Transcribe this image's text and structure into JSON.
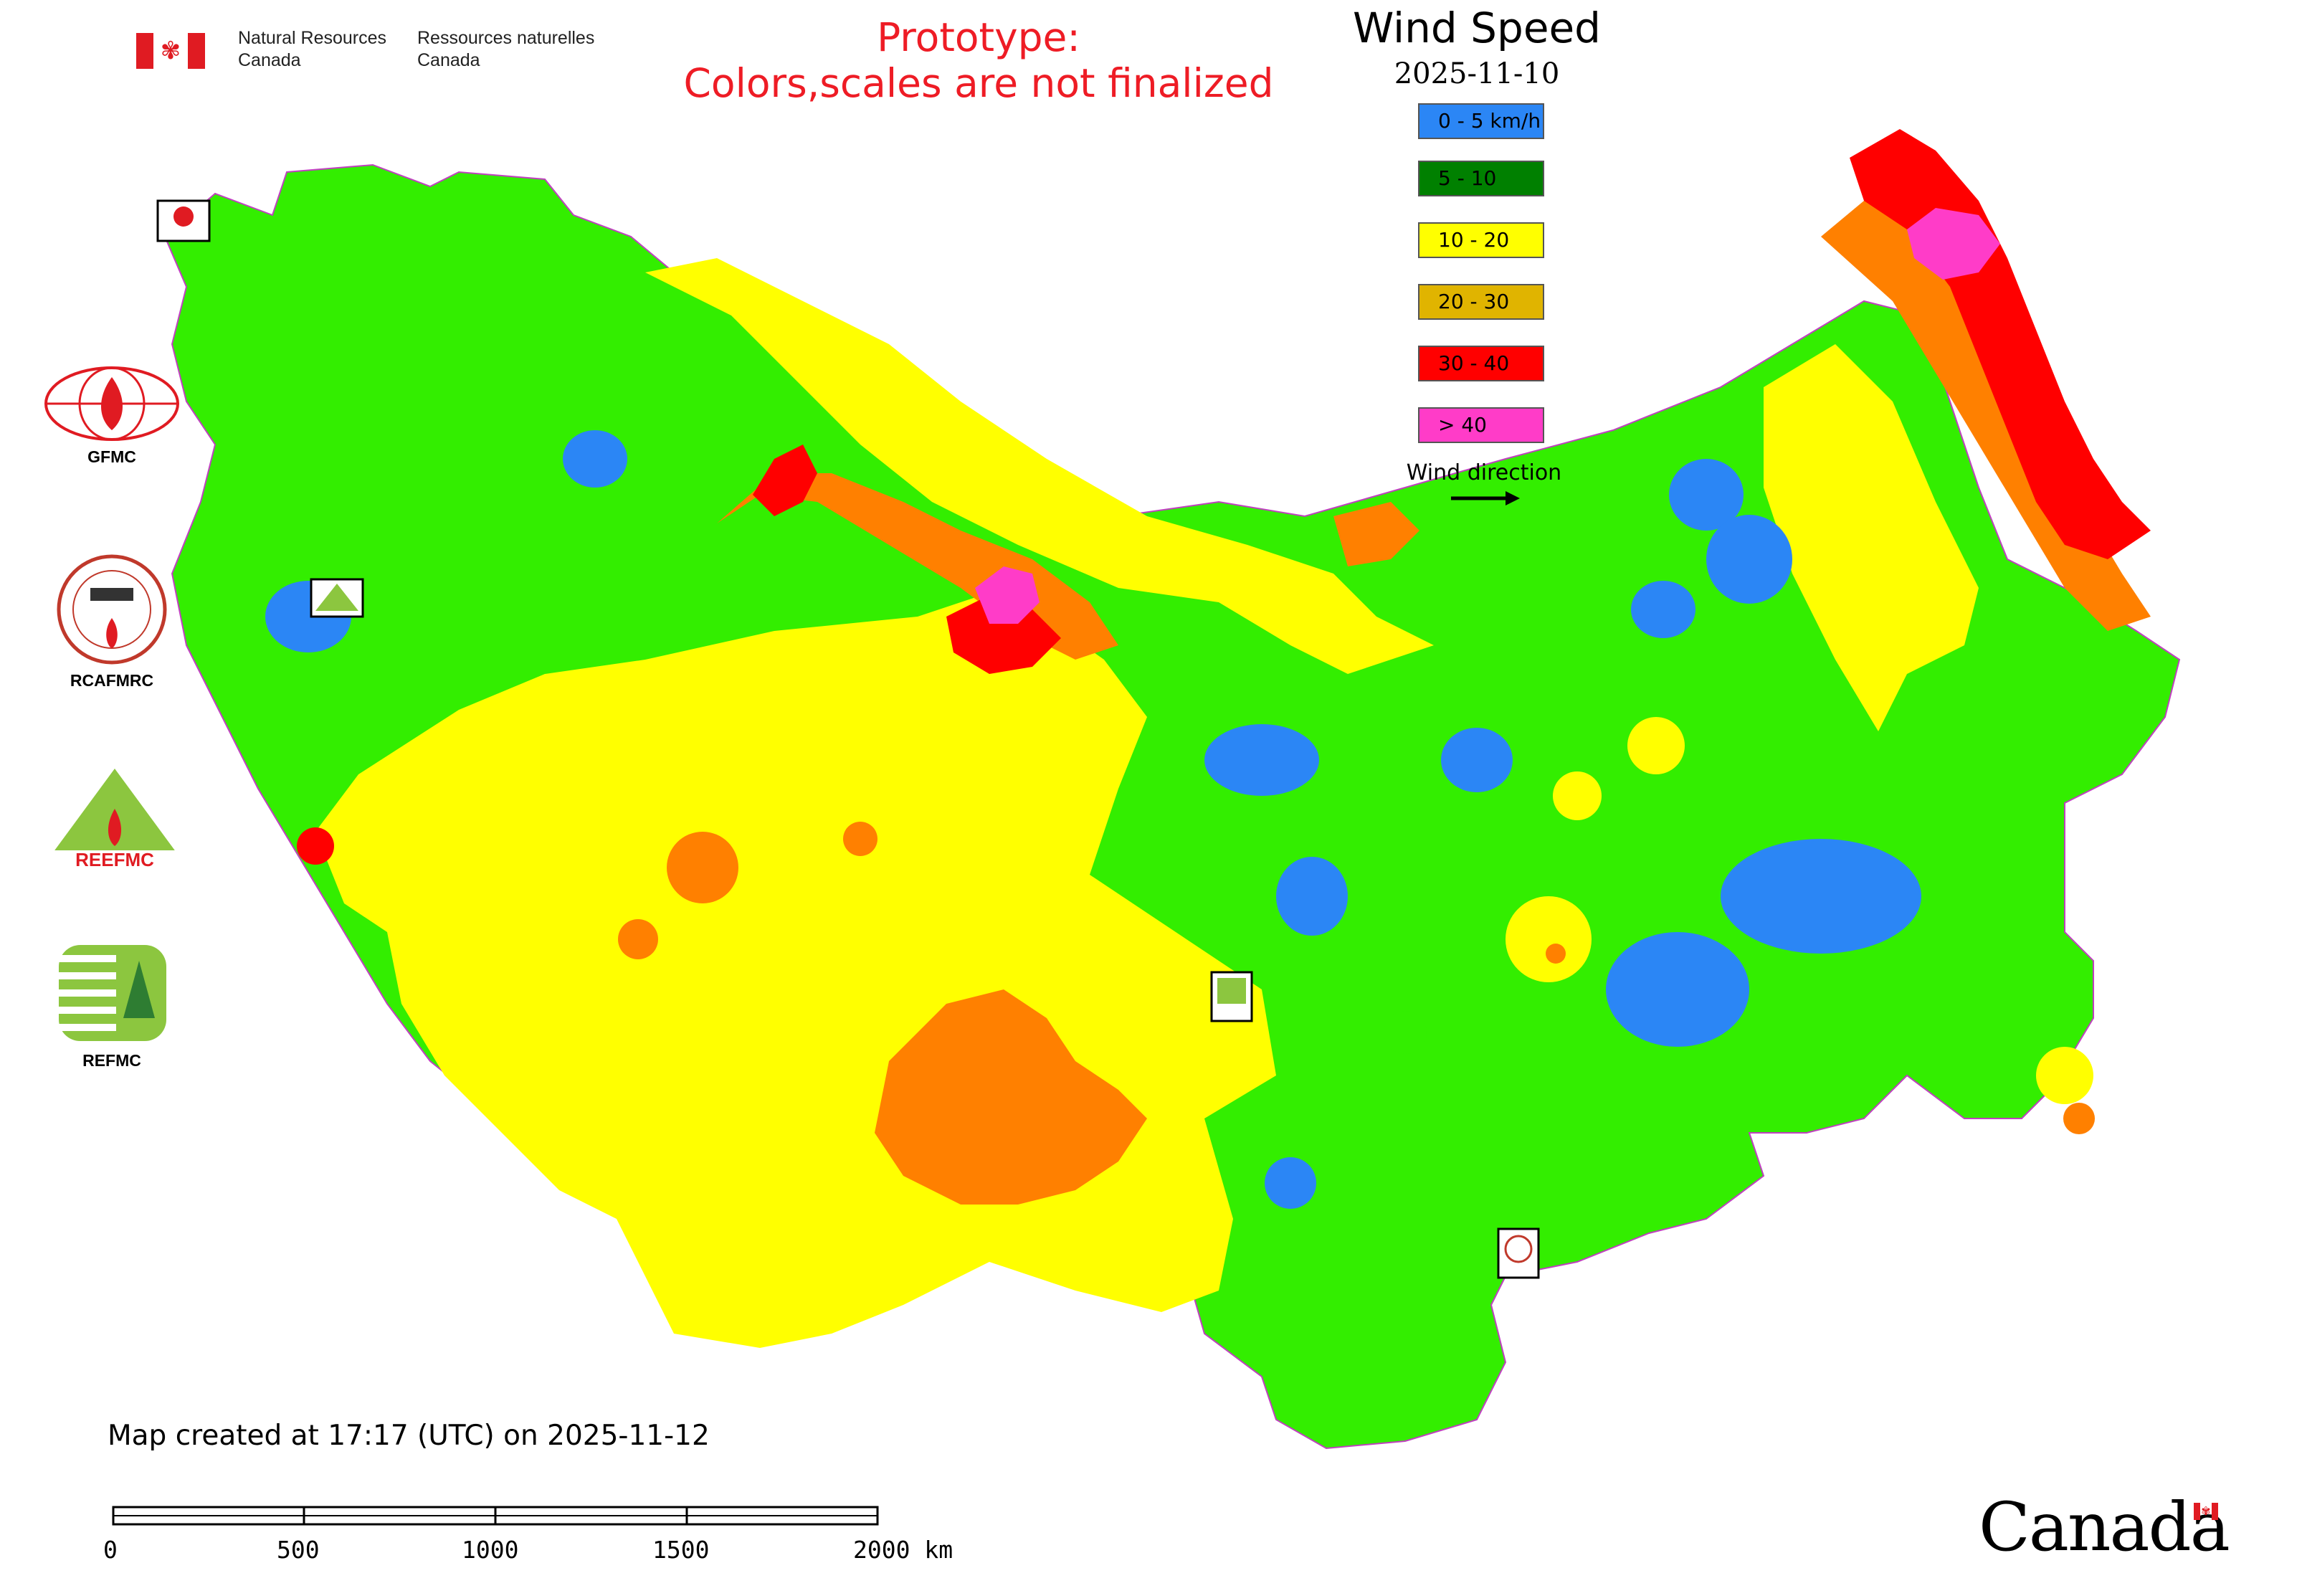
{
  "header": {
    "signature_en": "Natural Resources\nCanada",
    "signature_fr": "Ressources naturelles\nCanada",
    "prototype_line1": "Prototype:",
    "prototype_line2": "Colors,scales are not finalized"
  },
  "legend": {
    "title": "Wind Speed",
    "date": "2025-11-10",
    "classes": [
      {
        "label": "0 - 5 km/h",
        "color": "#2b86f5"
      },
      {
        "label": "5 - 10",
        "color": "#008000"
      },
      {
        "label": "10 - 20",
        "color": "#ffff00"
      },
      {
        "label": "20 - 30",
        "color": "#e0b400"
      },
      {
        "label": "30 - 40",
        "color": "#ff0000"
      },
      {
        "label": "> 40",
        "color": "#ff3cc8"
      }
    ],
    "wind_direction_label": "Wind direction"
  },
  "map_colors": {
    "blue": "#2b86f5",
    "green": "#33ee00",
    "yellow": "#ffff00",
    "orange": "#ff8000",
    "red": "#ff0000",
    "magenta": "#ff3cc8",
    "border": "#c040c0"
  },
  "logos": [
    {
      "label": "GFMC",
      "icon": "gfmc-logo-icon"
    },
    {
      "label": "RCAFMRC",
      "icon": "rcafmrc-logo-icon"
    },
    {
      "label": "REEFMC",
      "icon": "reefmc-logo-icon"
    },
    {
      "label": "REFMC",
      "icon": "refmc-logo-icon"
    }
  ],
  "map_markers": [
    {
      "label": "GFMC",
      "icon": "gfmc-marker-icon"
    },
    {
      "label": "REEFMC",
      "icon": "reefmc-marker-icon"
    },
    {
      "label": "REFMC",
      "icon": "refmc-marker-icon"
    },
    {
      "label": "RCAFMRC",
      "icon": "rcafmrc-marker-icon"
    }
  ],
  "footer": {
    "map_created": "Map created at 17:17 (UTC) on 2025-11-12",
    "scale_labels": [
      "0",
      "500",
      "1000",
      "1500",
      "2000 km"
    ],
    "wordmark": "Canada"
  }
}
